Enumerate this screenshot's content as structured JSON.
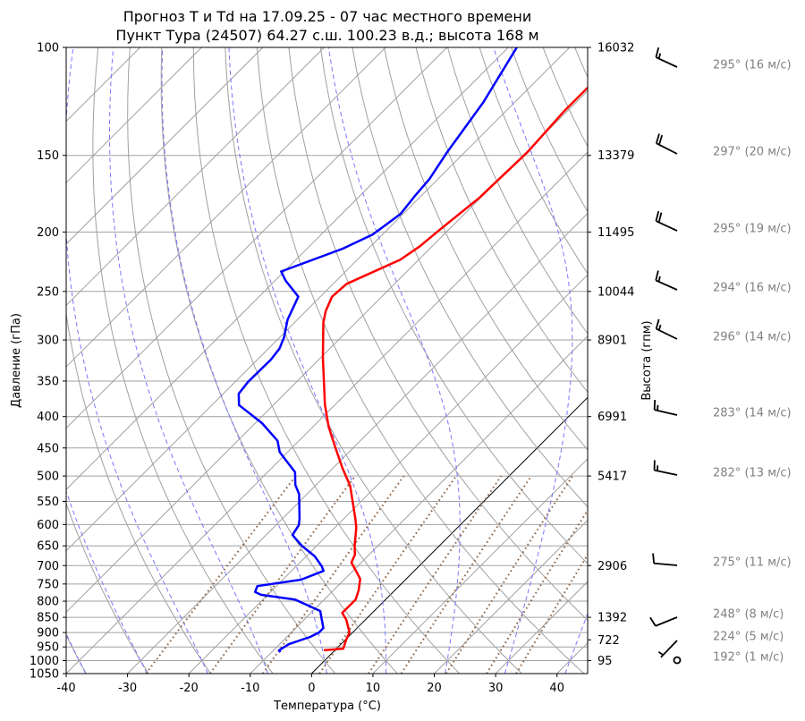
{
  "chart_data": {
    "type": "skew-t",
    "title": "Прогноз T и Td на 17.09.25 - 07 час местного времени",
    "subtitle": "Пункт Тура (24507) 64.27 с.ш. 100.23 в.д.; высота 168 м",
    "xlabel": "Температура (°C)",
    "ylabel": "Давление (гПа)",
    "y2label": "Высота (гпм)",
    "xlim": [
      -40,
      45
    ],
    "ylim": [
      1050,
      100
    ],
    "y_scale": "log",
    "skew_deg": 45,
    "xticks": [
      -40,
      -30,
      -20,
      -10,
      0,
      10,
      20,
      30,
      40
    ],
    "yticks": [
      100,
      150,
      200,
      250,
      300,
      350,
      400,
      450,
      500,
      550,
      600,
      650,
      700,
      750,
      800,
      850,
      900,
      950,
      1000,
      1050
    ],
    "height_ticks": [
      {
        "p": 100,
        "label": "16032"
      },
      {
        "p": 150,
        "label": "13379"
      },
      {
        "p": 200,
        "label": "11495"
      },
      {
        "p": 250,
        "label": "10044"
      },
      {
        "p": 300,
        "label": "8901"
      },
      {
        "p": 400,
        "label": "6991"
      },
      {
        "p": 500,
        "label": "5417"
      },
      {
        "p": 700,
        "label": "2906"
      },
      {
        "p": 850,
        "label": "1392"
      },
      {
        "p": 925,
        "label": "722"
      },
      {
        "p": 1000,
        "label": "95"
      }
    ],
    "series": [
      {
        "variable": "T",
        "color": "#ff0000",
        "points": [
          [
            962,
            -1.8
          ],
          [
            956,
            1.1
          ],
          [
            924,
            0.1
          ],
          [
            900,
            -0.5
          ],
          [
            858,
            -3.1
          ],
          [
            836,
            -4.9
          ],
          [
            795,
            -4.9
          ],
          [
            768,
            -5.9
          ],
          [
            736,
            -7.5
          ],
          [
            714,
            -9.5
          ],
          [
            692,
            -11.6
          ],
          [
            672,
            -12.3
          ],
          [
            650,
            -13.8
          ],
          [
            607,
            -16.5
          ],
          [
            587,
            -18.1
          ],
          [
            519,
            -24.3
          ],
          [
            485,
            -28.5
          ],
          [
            449,
            -33.0
          ],
          [
            416,
            -37.4
          ],
          [
            383,
            -41.6
          ],
          [
            321,
            -49.6
          ],
          [
            281,
            -55.3
          ],
          [
            269,
            -56.8
          ],
          [
            255,
            -58.1
          ],
          [
            243,
            -57.8
          ],
          [
            222,
            -53.0
          ],
          [
            211,
            -52.0
          ],
          [
            199,
            -51.5
          ],
          [
            176,
            -50.2
          ],
          [
            148,
            -49.8
          ],
          [
            127,
            -50.5
          ],
          [
            116,
            -50.5
          ]
        ]
      },
      {
        "variable": "Td",
        "color": "#0000ff",
        "points": [
          [
            969,
            -8.6
          ],
          [
            962,
            -9.1
          ],
          [
            940,
            -8.5
          ],
          [
            915,
            -6.2
          ],
          [
            900,
            -5.5
          ],
          [
            885,
            -5.5
          ],
          [
            830,
            -8.8
          ],
          [
            795,
            -14.8
          ],
          [
            781,
            -21.1
          ],
          [
            773,
            -22.5
          ],
          [
            756,
            -23.1
          ],
          [
            738,
            -17.0
          ],
          [
            714,
            -14.8
          ],
          [
            702,
            -15.8
          ],
          [
            676,
            -18.6
          ],
          [
            650,
            -22.4
          ],
          [
            624,
            -25.7
          ],
          [
            601,
            -26.3
          ],
          [
            587,
            -27.2
          ],
          [
            535,
            -31.3
          ],
          [
            517,
            -33.4
          ],
          [
            493,
            -35.5
          ],
          [
            457,
            -41.3
          ],
          [
            438,
            -43.5
          ],
          [
            410,
            -48.9
          ],
          [
            383,
            -55.6
          ],
          [
            367,
            -57.5
          ],
          [
            351,
            -57.9
          ],
          [
            323,
            -57.8
          ],
          [
            310,
            -58.2
          ],
          [
            297,
            -59.3
          ],
          [
            278,
            -61.6
          ],
          [
            255,
            -63.6
          ],
          [
            240,
            -68.3
          ],
          [
            232,
            -70.5
          ],
          [
            213,
            -64.2
          ],
          [
            202,
            -61.6
          ],
          [
            187,
            -60.4
          ],
          [
            175,
            -61.0
          ],
          [
            164,
            -61.4
          ],
          [
            148,
            -62.9
          ],
          [
            123,
            -65.1
          ],
          [
            100,
            -68.6
          ]
        ]
      }
    ],
    "background_lines": {
      "isotherms_color": "#a0a0a0",
      "zero_isotherm_color": "#000000",
      "dry_adiabats_color": "#a0a0a0",
      "moist_adiabats_color": "#7777ff",
      "mixing_ratio_color": "#8c6446",
      "isobars_color": "#a0a0a0"
    },
    "wind": [
      {
        "p": 100,
        "dir": 295,
        "speed": 16,
        "label": "295° (16 м/с)"
      },
      {
        "p": 150,
        "dir": 297,
        "speed": 20,
        "label": "297° (20 м/с)"
      },
      {
        "p": 200,
        "dir": 295,
        "speed": 19,
        "label": "295° (19 м/с)"
      },
      {
        "p": 250,
        "dir": 294,
        "speed": 16,
        "label": "294° (16 м/с)"
      },
      {
        "p": 300,
        "dir": 296,
        "speed": 14,
        "label": "296° (14 м/с)"
      },
      {
        "p": 400,
        "dir": 283,
        "speed": 14,
        "label": "283° (14 м/с)"
      },
      {
        "p": 500,
        "dir": 282,
        "speed": 13,
        "label": "282° (13 м/с)"
      },
      {
        "p": 700,
        "dir": 275,
        "speed": 11,
        "label": "275° (11 м/с)"
      },
      {
        "p": 850,
        "dir": 248,
        "speed": 8,
        "label": "248° (8 м/с)"
      },
      {
        "p": 925,
        "dir": 224,
        "speed": 5,
        "label": "224° (5 м/с)"
      },
      {
        "p": 1000,
        "dir": 192,
        "speed": 1,
        "label": "192° (1 м/с)"
      }
    ]
  }
}
